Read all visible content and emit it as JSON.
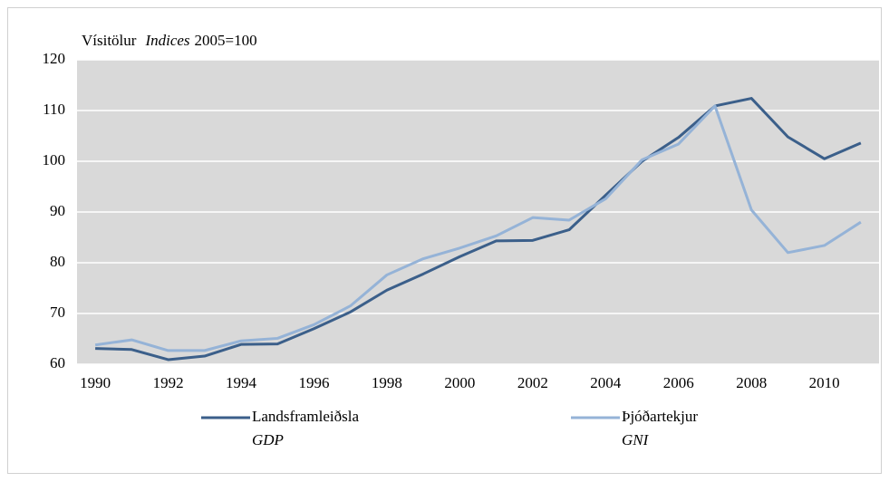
{
  "chart_data": {
    "type": "line",
    "ylabel": {
      "is": "Vísitölur",
      "en": "Indices",
      "base": "2005=100"
    },
    "x": [
      1990,
      1991,
      1992,
      1993,
      1994,
      1995,
      1996,
      1997,
      1998,
      1999,
      2000,
      2001,
      2002,
      2003,
      2004,
      2005,
      2006,
      2007,
      2008,
      2009,
      2010,
      2011
    ],
    "xlim": [
      1989.5,
      2011.5
    ],
    "xticks": [
      1990,
      1992,
      1994,
      1996,
      1998,
      2000,
      2002,
      2004,
      2006,
      2008,
      2010
    ],
    "ylim": [
      60,
      120
    ],
    "yticks": [
      60,
      70,
      80,
      90,
      100,
      110,
      120
    ],
    "grid": true,
    "series": [
      {
        "name": "Landsframleiðsla",
        "name_en": "GDP",
        "color": "#3b5f8a",
        "values": [
          63.1,
          62.9,
          60.9,
          61.6,
          63.9,
          64.0,
          67.0,
          70.3,
          74.6,
          77.8,
          81.2,
          84.3,
          84.4,
          86.5,
          93.3,
          100.0,
          104.7,
          110.9,
          112.4,
          104.8,
          100.5,
          103.6
        ]
      },
      {
        "name": "Þjóðartekjur",
        "name_en": "GNI",
        "color": "#95b3d7",
        "values": [
          63.8,
          64.8,
          62.7,
          62.7,
          64.6,
          65.1,
          67.8,
          71.5,
          77.6,
          80.8,
          82.9,
          85.3,
          88.9,
          88.4,
          92.6,
          100.3,
          103.4,
          110.9,
          90.4,
          82.0,
          83.4,
          88.0
        ]
      }
    ]
  }
}
